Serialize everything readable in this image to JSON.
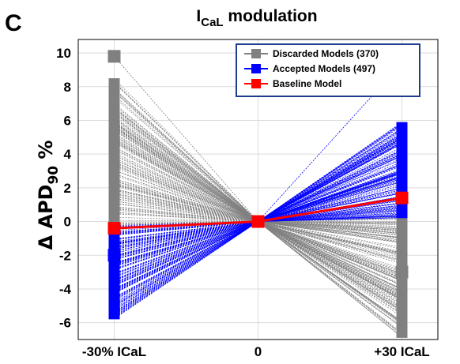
{
  "panel_label": "C",
  "chart_data": {
    "type": "line",
    "title_main": "I",
    "title_sub": "CaL",
    "title_rest": " modulation",
    "ylabel_prefix": "Δ APD",
    "ylabel_sub": "90",
    "ylabel_suffix": " %",
    "categories": [
      "-30% ICaL",
      "0",
      "+30 ICaL"
    ],
    "x": [
      -1,
      0,
      1
    ],
    "ylim": [
      -7,
      10.8
    ],
    "yticks": [
      -6,
      -4,
      -2,
      0,
      2,
      4,
      6,
      8,
      10
    ],
    "grid": true,
    "legend_position": "top-right",
    "colors": {
      "discarded": "#808080",
      "accepted": "#0000ff",
      "baseline": "#ff0000",
      "legend_border": "#1f3a93"
    },
    "legend": [
      {
        "key": "discarded",
        "label": "Discarded Models (370)"
      },
      {
        "key": "accepted",
        "label": "Accepted Models (497)"
      },
      {
        "key": "baseline",
        "label": "Baseline Model"
      }
    ],
    "series": [
      {
        "key": "discarded",
        "name": "Discarded Models (370)",
        "count": 370,
        "left_range": [
          -0.3,
          8.5
        ],
        "right_range": [
          -6.9,
          0.3
        ],
        "outlier": {
          "left": 9.8,
          "right": -3.0
        }
      },
      {
        "key": "accepted",
        "name": "Accepted Models (497)",
        "count": 497,
        "left_range": [
          -5.8,
          -0.2
        ],
        "right_range": [
          0.2,
          5.9
        ],
        "outlier": {
          "left": -2.0,
          "right": 9.4
        }
      },
      {
        "key": "baseline",
        "name": "Baseline Model",
        "values": [
          -0.4,
          0,
          1.4
        ]
      }
    ]
  }
}
